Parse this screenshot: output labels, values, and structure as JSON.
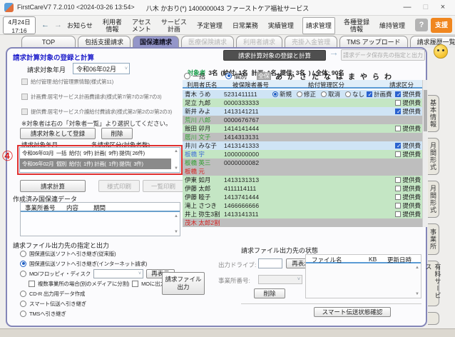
{
  "icons": {
    "back": "←",
    "forward": "→",
    "dropdown": "˅",
    "scroll_up": "▲",
    "scroll_down": "▼",
    "step_arrow": "→"
  },
  "titlebar": {
    "app_title": "FirstCareV7 7.2.010 <2024-03-26 13:54>",
    "user_info": "八木 かおり(*) 1400000043 ファーストケア福祉サービス"
  },
  "window_controls": {
    "minimize": "—",
    "maximize": "□",
    "close": "×"
  },
  "topnav": {
    "date": "4月24日",
    "time": "17:16",
    "items": [
      "お知らせ",
      "利用者\n情報",
      "アセス\nメント",
      "サービス\n計画",
      "予定管理",
      "日常業務",
      "実績管理",
      "請求管理",
      "各種登録\n情報",
      "維持管理"
    ],
    "active_item": "請求管理",
    "help_label": "?",
    "support_label": "支援"
  },
  "tabbar": {
    "tabs": [
      {
        "label": "TOP",
        "state": "normal"
      },
      {
        "label": "包括支援請求",
        "state": "normal"
      },
      {
        "label": "国保連請求",
        "state": "active"
      },
      {
        "label": "医療保険請求",
        "state": "disabled"
      },
      {
        "label": "利用者請求",
        "state": "disabled"
      },
      {
        "label": "売掛入金管理",
        "state": "disabled"
      },
      {
        "label": "TMS アップロード",
        "state": "normal"
      },
      {
        "label": "請求履歴一覧",
        "state": "normal"
      }
    ]
  },
  "annotation": {
    "number": "④"
  },
  "left": {
    "section_title": "請求計算対象の登録と計算",
    "target_month_label": "請求対象年月",
    "target_month_value": "令和06年02月",
    "checkboxes": [
      {
        "label": "給付管理:給付管理票情報(様式第11)",
        "checked": false
      },
      {
        "label": "計画費:居宅サービス計画費請求(様式第7/第7の2/第7の3)",
        "checked": false
      },
      {
        "label": "提供費:居宅サービス介護給付費請求(様式第2/第2の2/第2の3)",
        "checked": false
      }
    ],
    "note": "※対象者は右の「対象者一覧」より選択してください。",
    "register_button": "請求対象として登録",
    "delete_button": "削除",
    "list_header_month": "請求対象年月",
    "list_header_category": "各請求区分(対象者数)",
    "billing_rows": [
      {
        "text": "令和06年03月  一括  給付(  9件) 計画(  9件) 提供( 26件)",
        "selected": false
      },
      {
        "text": "令和06年02月  個別  給付(  1件) 計画(  1件) 提供(  3件)",
        "selected": true
      }
    ],
    "calc_button": "請求計算",
    "form_print_button": "様式印刷",
    "list_print_button": "一覧印刷",
    "created_data_label": "作成済み国保連データ",
    "created_table_headers": [
      "事業所番号",
      "内容",
      "期間"
    ],
    "output_dest_label": "請求ファイル出力先の指定と出力",
    "output_options": [
      {
        "label": "国保連伝送ソフトへ引き継ぎ(従来版)",
        "selected": false
      },
      {
        "label": "国保連伝送ソフトへ引き継ぎ(インターネット請求)",
        "selected": true
      },
      {
        "label": "MO/フロッピィ・ディスク",
        "selected": false
      },
      {
        "label": "CD-R 出力用データ作成",
        "selected": false
      },
      {
        "label": "スマート伝送へ引き継ぎ",
        "selected": false
      },
      {
        "label": "TMSへ引き継ぎ",
        "selected": false
      }
    ],
    "redisplay_button": "再表示",
    "split_checkbox_label": "複数事業所の場合(別のメディアに分割)",
    "mo_checkbox_label": "MOに出力",
    "file_output_button": "請求ファイル出力"
  },
  "right": {
    "step1_button": "請求計算対象の登録と計算",
    "step2_button": "請求データ保存先の指定と出力",
    "summary": {
      "target_label": "対象者",
      "target_count": "3名",
      "detail": "(給付: 1名  計画: 1名  提供: 3名  ) / 全体: 90名"
    },
    "mode_batch": "一括",
    "mode_individual": "個別",
    "all_button": "全保",
    "kana": [
      "あ",
      "か",
      "さ",
      "た",
      "な",
      "は",
      "ま",
      "や",
      "ら",
      "わ"
    ],
    "table": {
      "headers": [
        "利用者氏名",
        "被保険者番号",
        "給付管理区分",
        "請求区分"
      ],
      "kyufu_options": [
        "新規",
        "修正",
        "取消",
        "なし"
      ],
      "keikaku_label": "計画費",
      "teikyo_label": "提供費",
      "rows": [
        {
          "name": "青木 うめ",
          "number": "5231411111",
          "bg": "blue",
          "has_kyufu": true,
          "kyufu": "新規",
          "has_keikaku": true,
          "keikaku": true,
          "has_teikyo": true,
          "teikyo": true
        },
        {
          "name": "足立 九郎",
          "number": "0000333333",
          "bg": "green",
          "has_teikyo": true,
          "teikyo": false
        },
        {
          "name": "新井 みよ",
          "number": "1413141211",
          "bg": "blue",
          "has_teikyo": true,
          "teikyo": true
        },
        {
          "name": "荒川 八郎",
          "number": "0000676767",
          "bg": "gray",
          "name_color": "green"
        },
        {
          "name": "飯田 卯月",
          "number": "1414141444",
          "bg": "green",
          "has_teikyo": true,
          "teikyo": false
        },
        {
          "name": "居川 文子",
          "number": "1414313131",
          "bg": "gray",
          "name_color": "green"
        },
        {
          "name": "井川 みな子",
          "number": "1413141333",
          "bg": "blue",
          "has_teikyo": true,
          "teikyo": true
        },
        {
          "name": "板橋 宇",
          "number": "1000000000",
          "bg": "green",
          "name_color": "blue",
          "has_teikyo": true,
          "teikyo": false
        },
        {
          "name": "板橋 英三",
          "number": "0000000082",
          "bg": "gray",
          "name_color": "green"
        },
        {
          "name": "板橋 元",
          "number": "",
          "bg": "gray",
          "name_color": "red"
        },
        {
          "name": "伊東 如月",
          "number": "1413131313",
          "bg": "green",
          "has_teikyo": true,
          "teikyo": false
        },
        {
          "name": "伊藤 太郎",
          "number": "4111114111",
          "bg": "green",
          "has_teikyo": true,
          "teikyo": false
        },
        {
          "name": "伊藤 睦子",
          "number": "1413741444",
          "bg": "green",
          "has_teikyo": true,
          "teikyo": false
        },
        {
          "name": "滝上 さつき",
          "number": "1466666666",
          "bg": "green",
          "has_teikyo": true,
          "teikyo": false
        },
        {
          "name": "井上 弥生3割",
          "number": "1413141311",
          "bg": "green",
          "has_teikyo": true,
          "teikyo": false
        },
        {
          "name": "茂木 太郎2割",
          "number": "",
          "bg": "gray",
          "name_color": "red"
        }
      ]
    },
    "status": {
      "label": "請求ファイル出力先の状態",
      "drive_label": "出力ドライブ:",
      "drive_value": "",
      "redisplay_button": "再表示",
      "office_label": "事業所番号:",
      "delete_button": "削除",
      "file_headers": [
        "ファイル名",
        "KB",
        "更新日時"
      ],
      "smart_button": "スマート伝送状態確認"
    }
  },
  "sidebar": {
    "tabs": [
      "基本情報",
      "月間形式",
      "月間形式",
      "事業所",
      "有料サービス"
    ]
  },
  "colors": {
    "accent_tab": "#9496c9",
    "support_orange": "#f0861f",
    "annotation_red": "#e03030",
    "row_blue": "#cfe4f5",
    "row_green": "#c4e6c4",
    "row_gray": "#bebebe",
    "checked_blue": "#2a62cf",
    "main_border": "#8486b8"
  }
}
